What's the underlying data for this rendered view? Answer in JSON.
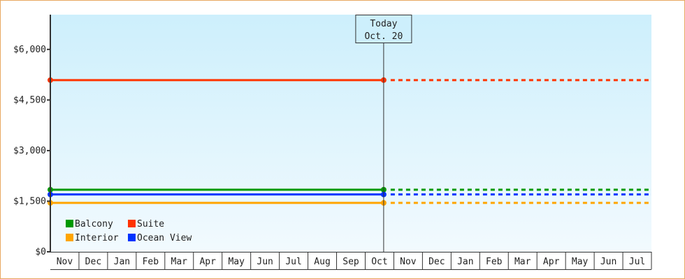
{
  "chart_data": {
    "type": "line",
    "title": "",
    "xlabel": "",
    "ylabel": "",
    "categories": [
      "Nov",
      "Dec",
      "Jan",
      "Feb",
      "Mar",
      "Apr",
      "May",
      "Jun",
      "Jul",
      "Aug",
      "Sep",
      "Oct",
      "Nov",
      "Dec",
      "Jan",
      "Feb",
      "Mar",
      "Apr",
      "May",
      "Jun",
      "Jul"
    ],
    "y_ticks": [
      0,
      1500,
      3000,
      4500,
      6000
    ],
    "y_tick_labels": [
      "$0",
      "$1,500",
      "$3,000",
      "$4,500",
      "$6,000"
    ],
    "ylim": [
      0,
      7030
    ],
    "grid": false,
    "legend_placement": "bottom-left",
    "today": {
      "label": "Today",
      "date": "Oct. 20",
      "month_index": 11,
      "day_fraction": 0.645
    },
    "series": [
      {
        "name": "Balcony",
        "color": "#009900",
        "start": 1840,
        "today": 1840,
        "projected": 1840
      },
      {
        "name": "Suite",
        "color": "#ff3300",
        "start": 5090,
        "today": 5090,
        "projected": 5090
      },
      {
        "name": "Interior",
        "color": "#ffa500",
        "start": 1450,
        "today": 1450,
        "projected": 1450
      },
      {
        "name": "Ocean View",
        "color": "#0033ff",
        "start": 1700,
        "today": 1700,
        "projected": 1700
      }
    ]
  }
}
